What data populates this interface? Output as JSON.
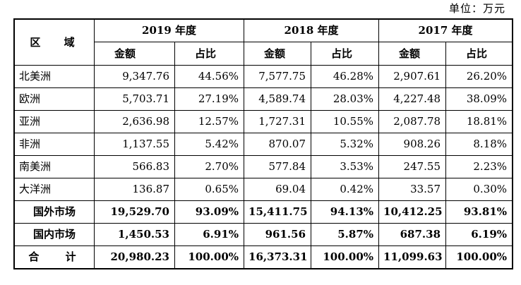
{
  "unit_label": "单位：万元",
  "header": {
    "region": "区 域",
    "years": [
      "2019 年度",
      "2018 年度",
      "2017 年度"
    ],
    "amount": "金额",
    "share": "占比"
  },
  "rows": [
    {
      "region": "北美洲",
      "v2019": "9,347.76",
      "p2019": "44.56%",
      "v2018": "7,577.75",
      "p2018": "46.28%",
      "v2017": "2,907.61",
      "p2017": "26.20%"
    },
    {
      "region": "欧洲",
      "v2019": "5,703.71",
      "p2019": "27.19%",
      "v2018": "4,589.74",
      "p2018": "28.03%",
      "v2017": "4,227.48",
      "p2017": "38.09%"
    },
    {
      "region": "亚洲",
      "v2019": "2,636.98",
      "p2019": "12.57%",
      "v2018": "1,727.31",
      "p2018": "10.55%",
      "v2017": "2,087.78",
      "p2017": "18.81%"
    },
    {
      "region": "非洲",
      "v2019": "1,137.55",
      "p2019": "5.42%",
      "v2018": "870.07",
      "p2018": "5.32%",
      "v2017": "908.26",
      "p2017": "8.18%"
    },
    {
      "region": "南美洲",
      "v2019": "566.83",
      "p2019": "2.70%",
      "v2018": "577.84",
      "p2018": "3.53%",
      "v2017": "247.55",
      "p2017": "2.23%"
    },
    {
      "region": "大洋洲",
      "v2019": "136.87",
      "p2019": "0.65%",
      "v2018": "69.04",
      "p2018": "0.42%",
      "v2017": "33.57",
      "p2017": "0.30%"
    },
    {
      "region": "国外市场",
      "v2019": "19,529.70",
      "p2019": "93.09%",
      "v2018": "15,411.75",
      "p2018": "94.13%",
      "v2017": "10,412.25",
      "p2017": "93.81%"
    },
    {
      "region": "国内市场",
      "v2019": "1,450.53",
      "p2019": "6.91%",
      "v2018": "961.56",
      "p2018": "5.87%",
      "v2017": "687.38",
      "p2017": "6.19%"
    },
    {
      "region": "合 计",
      "v2019": "20,980.23",
      "p2019": "100.00%",
      "v2018": "16,373.31",
      "p2018": "100.00%",
      "v2017": "11,099.63",
      "p2017": "100.00%"
    }
  ]
}
